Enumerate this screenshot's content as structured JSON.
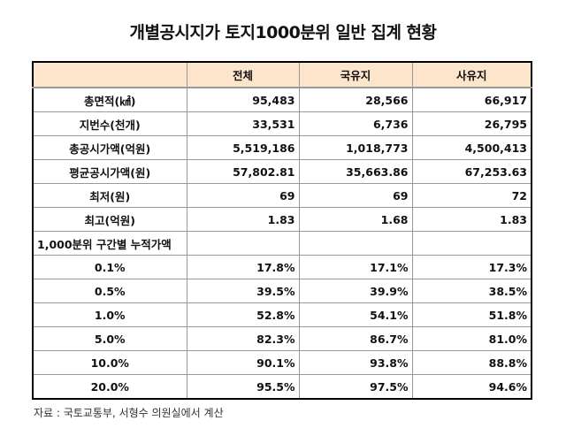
{
  "title": "개별공시지가 토지1000분위 일반 집계 현황",
  "columns": [
    "",
    "전체",
    "국유지",
    "사유지"
  ],
  "rows": [
    {
      "label": "총면적(㎢)",
      "values": [
        "95,483",
        "28,566",
        "66,917"
      ]
    },
    {
      "label": "지번수(천개)",
      "values": [
        "33,531",
        "6,736",
        "26,795"
      ]
    },
    {
      "label": "총공시가액(억원)",
      "values": [
        "5,519,186",
        "1,018,773",
        "4,500,413"
      ]
    },
    {
      "label": "평균공시가액(원)",
      "values": [
        "57,802.81",
        "35,663.86",
        "67,253.63"
      ]
    },
    {
      "label": "최저(원)",
      "values": [
        "69",
        "69",
        "72"
      ]
    },
    {
      "label": "최고(억원)",
      "values": [
        "1.83",
        "1.68",
        "1.83"
      ]
    },
    {
      "label": "1,000분위 구간별 누적가액",
      "values": [
        "",
        "",
        ""
      ]
    },
    {
      "label": "0.1%",
      "values": [
        "17.8%",
        "17.1%",
        "17.3%"
      ]
    },
    {
      "label": "0.5%",
      "values": [
        "39.5%",
        "39.9%",
        "38.5%"
      ]
    },
    {
      "label": "1.0%",
      "values": [
        "52.8%",
        "54.1%",
        "51.8%"
      ]
    },
    {
      "label": "5.0%",
      "values": [
        "82.3%",
        "86.7%",
        "81.0%"
      ]
    },
    {
      "label": "10.0%",
      "values": [
        "90.1%",
        "93.8%",
        "88.8%"
      ]
    },
    {
      "label": "20.0%",
      "values": [
        "95.5%",
        "97.5%",
        "94.6%"
      ]
    }
  ],
  "source": "자료 : 국토교통부, 서형수 의원실에서 계산",
  "colors": {
    "header_bg": "#fde5cc",
    "border": "#999999"
  }
}
